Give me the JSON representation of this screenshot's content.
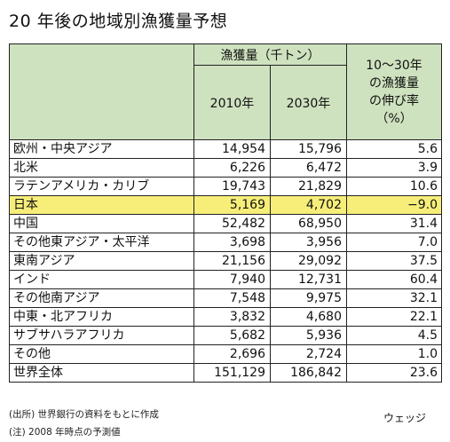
{
  "title": "20 年後の地域別漁獲量予想",
  "table": {
    "group_header": "漁獲量（千トン）",
    "year1": "2010年",
    "year2": "2030年",
    "rate_header": [
      "10～30年",
      "の漁獲量",
      "の伸び率",
      "（%）"
    ],
    "rows": [
      {
        "region": "欧州・中央アジア",
        "y2010": "14,954",
        "y2030": "15,796",
        "rate": "5.6"
      },
      {
        "region": "北米",
        "y2010": "6,226",
        "y2030": "6,472",
        "rate": "3.9"
      },
      {
        "region": "ラテンアメリカ・カリブ",
        "y2010": "19,743",
        "y2030": "21,829",
        "rate": "10.6"
      },
      {
        "region": "日本",
        "y2010": "5,169",
        "y2030": "4,702",
        "rate": "−9.0"
      },
      {
        "region": "中国",
        "y2010": "52,482",
        "y2030": "68,950",
        "rate": "31.4"
      },
      {
        "region": "その他東アジア・太平洋",
        "y2010": "3,698",
        "y2030": "3,956",
        "rate": "7.0"
      },
      {
        "region": "東南アジア",
        "y2010": "21,156",
        "y2030": "29,092",
        "rate": "37.5"
      },
      {
        "region": "インド",
        "y2010": "7,940",
        "y2030": "12,731",
        "rate": "60.4"
      },
      {
        "region": "その他南アジア",
        "y2010": "7,548",
        "y2030": "9,975",
        "rate": "32.1"
      },
      {
        "region": "中東・北アフリカ",
        "y2010": "3,832",
        "y2030": "4,680",
        "rate": "22.1"
      },
      {
        "region": "サブサハラアフリカ",
        "y2010": "5,682",
        "y2030": "5,936",
        "rate": "4.5"
      },
      {
        "region": "その他",
        "y2010": "2,696",
        "y2030": "2,724",
        "rate": "1.0"
      },
      {
        "region": "世界全体",
        "y2010": "151,129",
        "y2030": "186,842",
        "rate": "23.6"
      }
    ],
    "highlight_color": "#f7ee7a",
    "header_color": "#cfe2bf"
  },
  "footer": {
    "source": "(出所) 世界銀行の資料をもとに作成",
    "note": "(注) 2008 年時点の予測値",
    "logo": "ウェッジ"
  }
}
